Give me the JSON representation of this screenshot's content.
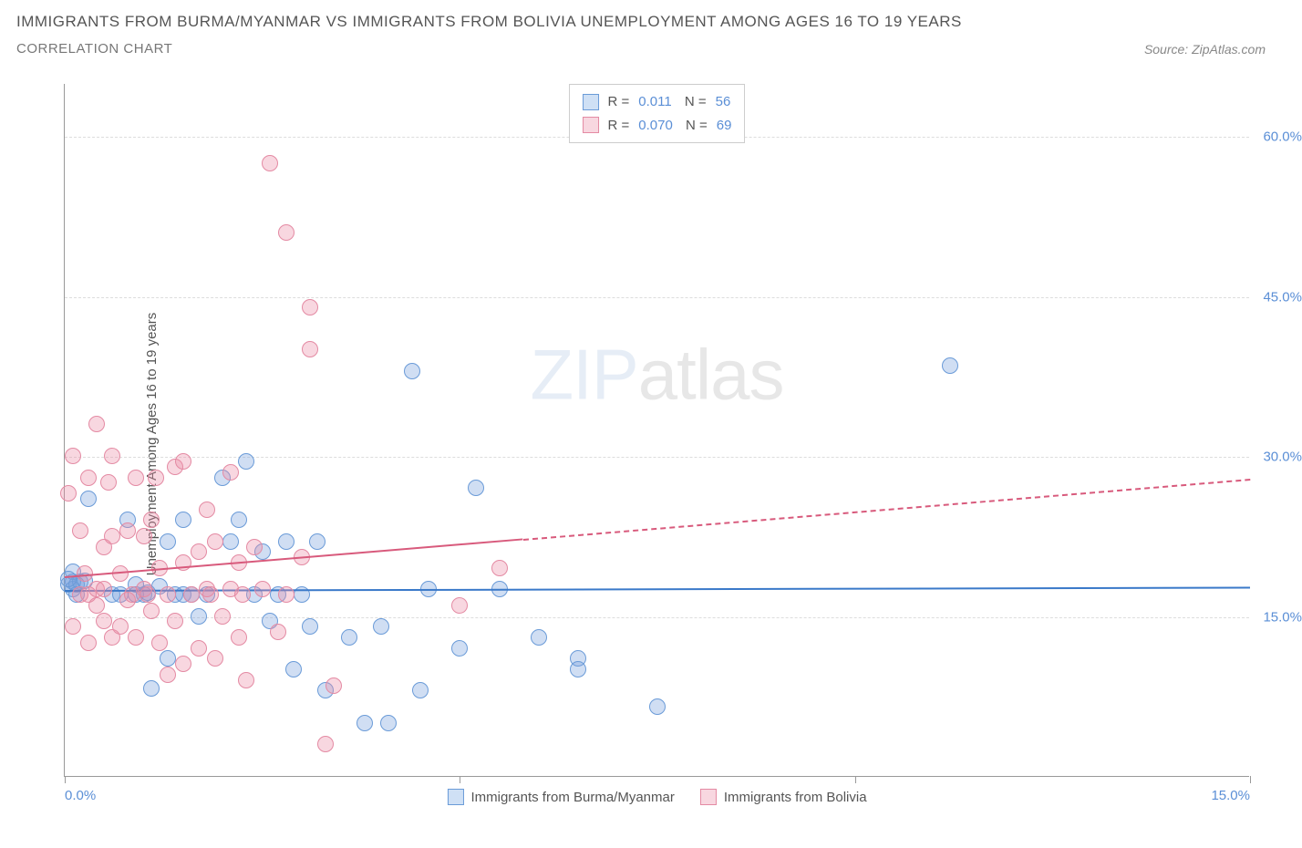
{
  "title": "IMMIGRANTS FROM BURMA/MYANMAR VS IMMIGRANTS FROM BOLIVIA UNEMPLOYMENT AMONG AGES 16 TO 19 YEARS",
  "subtitle": "CORRELATION CHART",
  "source": "Source: ZipAtlas.com",
  "ylabel": "Unemployment Among Ages 16 to 19 years",
  "watermark_a": "ZIP",
  "watermark_b": "atlas",
  "xaxis": {
    "min": 0,
    "max": 15,
    "ticks": [
      0,
      5,
      10,
      15
    ],
    "tick_labels": [
      "0.0%",
      "",
      "",
      "15.0%"
    ]
  },
  "yaxis": {
    "min": 0,
    "max": 65,
    "gridlines": [
      15,
      30,
      45,
      60
    ],
    "labels": [
      "15.0%",
      "30.0%",
      "45.0%",
      "60.0%"
    ]
  },
  "series": [
    {
      "name": "Immigrants from Burma/Myanmar",
      "color_fill": "rgba(120,160,220,0.35)",
      "color_stroke": "#6a9bd8",
      "swatch_fill": "#cfe0f5",
      "swatch_border": "#6a9bd8",
      "R": "0.011",
      "N": "56",
      "marker_radius": 9,
      "trend": {
        "x1": 0,
        "y1": 17.5,
        "x2": 15,
        "y2": 17.8,
        "color": "#3a79c9",
        "solid_until_x": 15
      },
      "points": [
        [
          0.05,
          18.0
        ],
        [
          0.1,
          18.2
        ],
        [
          0.1,
          17.5
        ],
        [
          0.15,
          18.0
        ],
        [
          0.2,
          18.2
        ],
        [
          0.25,
          18.3
        ],
        [
          0.1,
          19.2
        ],
        [
          0.05,
          18.5
        ],
        [
          0.15,
          17.0
        ],
        [
          0.3,
          26.0
        ],
        [
          0.6,
          17.0
        ],
        [
          0.7,
          17.0
        ],
        [
          0.8,
          24.0
        ],
        [
          0.9,
          18.0
        ],
        [
          0.9,
          17.0
        ],
        [
          1.0,
          17.0
        ],
        [
          1.05,
          17.2
        ],
        [
          1.1,
          8.2
        ],
        [
          1.2,
          17.8
        ],
        [
          1.3,
          22.0
        ],
        [
          1.3,
          11.0
        ],
        [
          1.4,
          17.0
        ],
        [
          1.5,
          24.0
        ],
        [
          1.5,
          17.0
        ],
        [
          1.6,
          17.0
        ],
        [
          1.7,
          15.0
        ],
        [
          1.8,
          17.0
        ],
        [
          2.0,
          28.0
        ],
        [
          2.1,
          22.0
        ],
        [
          2.2,
          24.0
        ],
        [
          2.3,
          29.5
        ],
        [
          2.4,
          17.0
        ],
        [
          2.5,
          21.0
        ],
        [
          2.6,
          14.5
        ],
        [
          2.7,
          17.0
        ],
        [
          2.8,
          22.0
        ],
        [
          2.9,
          10.0
        ],
        [
          3.0,
          17.0
        ],
        [
          3.1,
          14.0
        ],
        [
          3.2,
          22.0
        ],
        [
          3.3,
          8.0
        ],
        [
          3.6,
          13.0
        ],
        [
          3.8,
          5.0
        ],
        [
          4.0,
          14.0
        ],
        [
          4.1,
          5.0
        ],
        [
          4.4,
          38.0
        ],
        [
          4.5,
          8.0
        ],
        [
          4.6,
          17.5
        ],
        [
          5.0,
          12.0
        ],
        [
          5.2,
          27.0
        ],
        [
          5.5,
          17.5
        ],
        [
          6.0,
          13.0
        ],
        [
          6.5,
          11.0
        ],
        [
          6.5,
          10.0
        ],
        [
          7.5,
          6.5
        ],
        [
          11.2,
          38.5
        ]
      ]
    },
    {
      "name": "Immigrants from Bolivia",
      "color_fill": "rgba(235,140,165,0.35)",
      "color_stroke": "#e48aa3",
      "swatch_fill": "#f8d7e0",
      "swatch_border": "#e48aa3",
      "R": "0.070",
      "N": "69",
      "marker_radius": 9,
      "trend": {
        "x1": 0,
        "y1": 18.8,
        "x2": 15,
        "y2": 28.0,
        "color": "#d85a7c",
        "solid_until_x": 5.8
      },
      "points": [
        [
          0.05,
          26.5
        ],
        [
          0.1,
          30.0
        ],
        [
          0.1,
          14.0
        ],
        [
          0.2,
          23.0
        ],
        [
          0.2,
          17.0
        ],
        [
          0.25,
          19.0
        ],
        [
          0.3,
          12.5
        ],
        [
          0.3,
          28.0
        ],
        [
          0.3,
          17.0
        ],
        [
          0.4,
          16.0
        ],
        [
          0.4,
          17.5
        ],
        [
          0.4,
          33.0
        ],
        [
          0.5,
          14.5
        ],
        [
          0.5,
          17.5
        ],
        [
          0.5,
          21.5
        ],
        [
          0.55,
          27.5
        ],
        [
          0.6,
          13.0
        ],
        [
          0.6,
          22.5
        ],
        [
          0.6,
          30.0
        ],
        [
          0.7,
          19.0
        ],
        [
          0.7,
          14.0
        ],
        [
          0.8,
          23.0
        ],
        [
          0.8,
          16.5
        ],
        [
          0.85,
          17.0
        ],
        [
          0.9,
          28.0
        ],
        [
          0.9,
          13.0
        ],
        [
          1.0,
          22.5
        ],
        [
          1.0,
          17.5
        ],
        [
          1.05,
          17.0
        ],
        [
          1.1,
          15.5
        ],
        [
          1.1,
          24.0
        ],
        [
          1.15,
          28.0
        ],
        [
          1.2,
          12.5
        ],
        [
          1.2,
          19.5
        ],
        [
          1.3,
          9.5
        ],
        [
          1.3,
          17.0
        ],
        [
          1.4,
          29.0
        ],
        [
          1.4,
          14.5
        ],
        [
          1.5,
          10.5
        ],
        [
          1.5,
          20.0
        ],
        [
          1.5,
          29.5
        ],
        [
          1.6,
          17.0
        ],
        [
          1.7,
          12.0
        ],
        [
          1.7,
          21.0
        ],
        [
          1.8,
          17.5
        ],
        [
          1.8,
          25.0
        ],
        [
          1.85,
          17.0
        ],
        [
          1.9,
          11.0
        ],
        [
          1.9,
          22.0
        ],
        [
          2.0,
          15.0
        ],
        [
          2.1,
          17.5
        ],
        [
          2.1,
          28.5
        ],
        [
          2.2,
          13.0
        ],
        [
          2.2,
          20.0
        ],
        [
          2.25,
          17.0
        ],
        [
          2.3,
          9.0
        ],
        [
          2.4,
          21.5
        ],
        [
          2.5,
          17.5
        ],
        [
          2.6,
          57.5
        ],
        [
          2.7,
          13.5
        ],
        [
          2.8,
          17.0
        ],
        [
          2.8,
          51.0
        ],
        [
          3.0,
          20.5
        ],
        [
          3.1,
          40.0
        ],
        [
          3.1,
          44.0
        ],
        [
          3.3,
          3.0
        ],
        [
          3.4,
          8.5
        ],
        [
          5.0,
          16.0
        ],
        [
          5.5,
          19.5
        ]
      ]
    }
  ],
  "bottom_legend": [
    {
      "label": "Immigrants from Burma/Myanmar",
      "fill": "#cfe0f5",
      "border": "#6a9bd8"
    },
    {
      "label": "Immigrants from Bolivia",
      "fill": "#f8d7e0",
      "border": "#e48aa3"
    }
  ]
}
